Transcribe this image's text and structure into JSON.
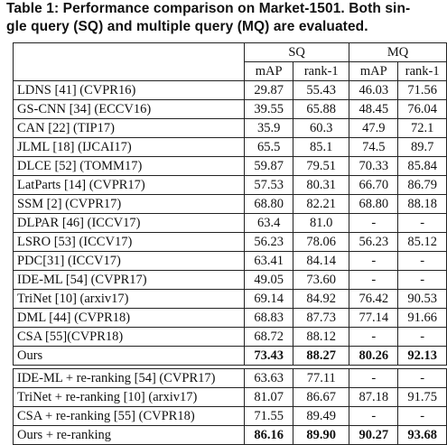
{
  "caption": "Table 1: Performance comparison on Market-1501. Both single query (SQ) and multiple query (MQ) are evaluated.",
  "caption_line1": "Table 1: Performance comparison on Market-1501. Both sin-",
  "caption_line2": "gle query (SQ) and multiple query (MQ) are evaluated.",
  "header": {
    "groups": [
      "SQ",
      "MQ"
    ],
    "columns": [
      "mAP",
      "rank-1",
      "mAP",
      "rank-1"
    ]
  },
  "main_rows": [
    {
      "method": "LDNS [41] (CVPR16)",
      "values": [
        "29.87",
        "55.43",
        "46.03",
        "71.56"
      ]
    },
    {
      "method": "GS-CNN [34] (ECCV16)",
      "values": [
        "39.55",
        "65.88",
        "48.45",
        "76.04"
      ]
    },
    {
      "method": "CAN [22] (TIP17)",
      "values": [
        "35.9",
        "60.3",
        "47.9",
        "72.1"
      ]
    },
    {
      "method": "JLML [18] (IJCAI17)",
      "values": [
        "65.5",
        "85.1",
        "74.5",
        "89.7"
      ]
    },
    {
      "method": "DLCE [52] (TOMM17)",
      "values": [
        "59.87",
        "79.51",
        "70.33",
        "85.84"
      ]
    },
    {
      "method": "LatParts [14] (CVPR17)",
      "values": [
        "57.53",
        "80.31",
        "66.70",
        "86.79"
      ]
    },
    {
      "method": "SSM [2] (CVPR17)",
      "values": [
        "68.80",
        "82.21",
        "68.80",
        "88.18"
      ]
    },
    {
      "method": "DLPAR [46] (ICCV17)",
      "values": [
        "63.4",
        "81.0",
        "-",
        "-"
      ]
    },
    {
      "method": "LSRO [53] (ICCV17)",
      "values": [
        "56.23",
        "78.06",
        "56.23",
        "85.12"
      ]
    },
    {
      "method": "PDC[31] (ICCV17)",
      "values": [
        "63.41",
        "84.14",
        "-",
        "-"
      ]
    },
    {
      "method": "IDE-ML [54] (CVPR17)",
      "values": [
        "49.05",
        "73.60",
        "-",
        "-"
      ]
    },
    {
      "method": "TriNet [10] (arxiv17)",
      "values": [
        "69.14",
        "84.92",
        "76.42",
        "90.53"
      ]
    },
    {
      "method": "DML [44] (CVPR18)",
      "values": [
        "68.83",
        "87.73",
        "77.14",
        "91.66"
      ]
    },
    {
      "method": "CSA [55](CVPR18)",
      "values": [
        "68.72",
        "88.12",
        "-",
        "-"
      ]
    }
  ],
  "ours": {
    "method": "Ours",
    "values": [
      "73.43",
      "88.27",
      "80.26",
      "92.13"
    ]
  },
  "rerank_rows": [
    {
      "method": "IDE-ML + re-ranking [54] (CVPR17)",
      "values": [
        "63.63",
        "77.11",
        "-",
        "-"
      ]
    },
    {
      "method": "TriNet + re-ranking [10] (arxiv17)",
      "values": [
        "81.07",
        "86.67",
        "87.18",
        "91.75"
      ]
    },
    {
      "method": "CSA + re-ranking [55] (CVPR18)",
      "values": [
        "71.55",
        "89.49",
        "-",
        "-"
      ]
    }
  ],
  "ours_rerank": {
    "method": "Ours + re-ranking",
    "values": [
      "86.16",
      "89.90",
      "90.27",
      "93.68"
    ]
  }
}
